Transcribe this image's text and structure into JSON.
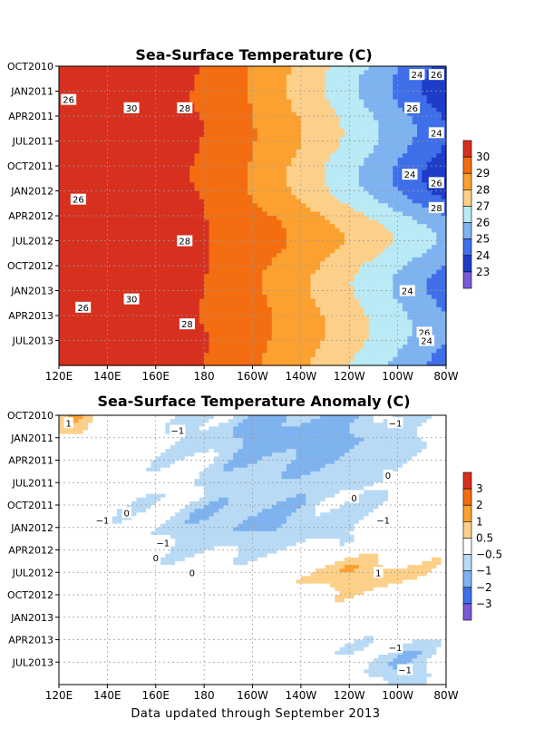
{
  "chart_data": [
    {
      "type": "heatmap",
      "title": "Sea-Surface Temperature (C)",
      "x_ticks": [
        "120E",
        "140E",
        "160E",
        "180",
        "160W",
        "140W",
        "120W",
        "100W",
        "80W"
      ],
      "y_ticks": [
        "OCT2010",
        "JAN2011",
        "APR2011",
        "JUL2011",
        "OCT2011",
        "JAN2012",
        "APR2012",
        "JUL2012",
        "OCT2012",
        "JAN2013",
        "APR2013",
        "JUL2013"
      ],
      "colorbar": {
        "labels": [
          "30",
          "29",
          "28",
          "27",
          "26",
          "25",
          "24",
          "23"
        ],
        "colors": [
          "#d7301f",
          "#f46d10",
          "#fca130",
          "#fdd08a",
          "#b9eaf5",
          "#7fb3f0",
          "#3f6fe8",
          "#1e3cc8",
          "#7a5ad8"
        ]
      },
      "contour_labels": [
        {
          "text": "30",
          "lon": 150,
          "mon": 5
        },
        {
          "text": "30",
          "lon": 150,
          "mon": 28
        },
        {
          "text": "28",
          "lon": 172,
          "mon": 5
        },
        {
          "text": "28",
          "lon": 172,
          "mon": 21
        },
        {
          "text": "28",
          "lon": 173,
          "mon": 31
        },
        {
          "text": "28",
          "lon": 82,
          "mon": 17
        },
        {
          "text": "26",
          "lon": 124,
          "mon": 4
        },
        {
          "text": "26",
          "lon": 128,
          "mon": 16
        },
        {
          "text": "26",
          "lon": 94,
          "mon": 5
        },
        {
          "text": "26",
          "lon": 130,
          "mon": 29
        },
        {
          "text": "26",
          "lon": 84,
          "mon": 14
        },
        {
          "text": "26",
          "lon": 89,
          "mon": 32
        },
        {
          "text": "26",
          "lon": 82,
          "mon": 1
        },
        {
          "text": "24",
          "lon": 92,
          "mon": 1
        },
        {
          "text": "24",
          "lon": 95,
          "mon": 13
        },
        {
          "text": "24",
          "lon": 84,
          "mon": 8
        },
        {
          "text": "24",
          "lon": 96,
          "mon": 27
        },
        {
          "text": "24",
          "lon": 88,
          "mon": 33
        }
      ]
    },
    {
      "type": "heatmap",
      "title": "Sea-Surface Temperature Anomaly (C)",
      "x_ticks": [
        "120E",
        "140E",
        "160E",
        "180",
        "160W",
        "140W",
        "120W",
        "100W",
        "80W"
      ],
      "y_ticks": [
        "OCT2010",
        "JAN2011",
        "APR2011",
        "JUL2011",
        "OCT2011",
        "JAN2012",
        "APR2012",
        "JUL2012",
        "OCT2012",
        "JAN2013",
        "APR2013",
        "JUL2013"
      ],
      "colorbar": {
        "labels": [
          "3",
          "2",
          "1",
          "0.5",
          "−0.5",
          "−1",
          "−2",
          "−3"
        ],
        "colors": [
          "#d7301f",
          "#f46d10",
          "#fca130",
          "#fdd08a",
          "#ffffff",
          "#b9daf5",
          "#7fb3f0",
          "#3f6fe8",
          "#7a5ad8"
        ]
      },
      "contour_labels": [
        {
          "text": "1",
          "lon": 121,
          "mon": 1
        },
        {
          "text": "−1",
          "lon": 169,
          "mon": 2
        },
        {
          "text": "−1",
          "lon": 101,
          "mon": 1
        },
        {
          "text": "−1",
          "lon": 138,
          "mon": 14
        },
        {
          "text": "−1",
          "lon": 106,
          "mon": 14
        },
        {
          "text": "−1",
          "lon": 163,
          "mon": 17
        },
        {
          "text": "1",
          "lon": 108,
          "mon": 21
        },
        {
          "text": "−1",
          "lon": 101,
          "mon": 31
        },
        {
          "text": "−1",
          "lon": 97,
          "mon": 34
        },
        {
          "text": "0",
          "lon": 118,
          "mon": 11
        },
        {
          "text": "0",
          "lon": 148,
          "mon": 13
        },
        {
          "text": "0",
          "lon": 175,
          "mon": 21
        },
        {
          "text": "0",
          "lon": 160,
          "mon": 19
        },
        {
          "text": "0",
          "lon": 104,
          "mon": 8
        }
      ]
    }
  ],
  "footer": "Data updated through September 2013"
}
